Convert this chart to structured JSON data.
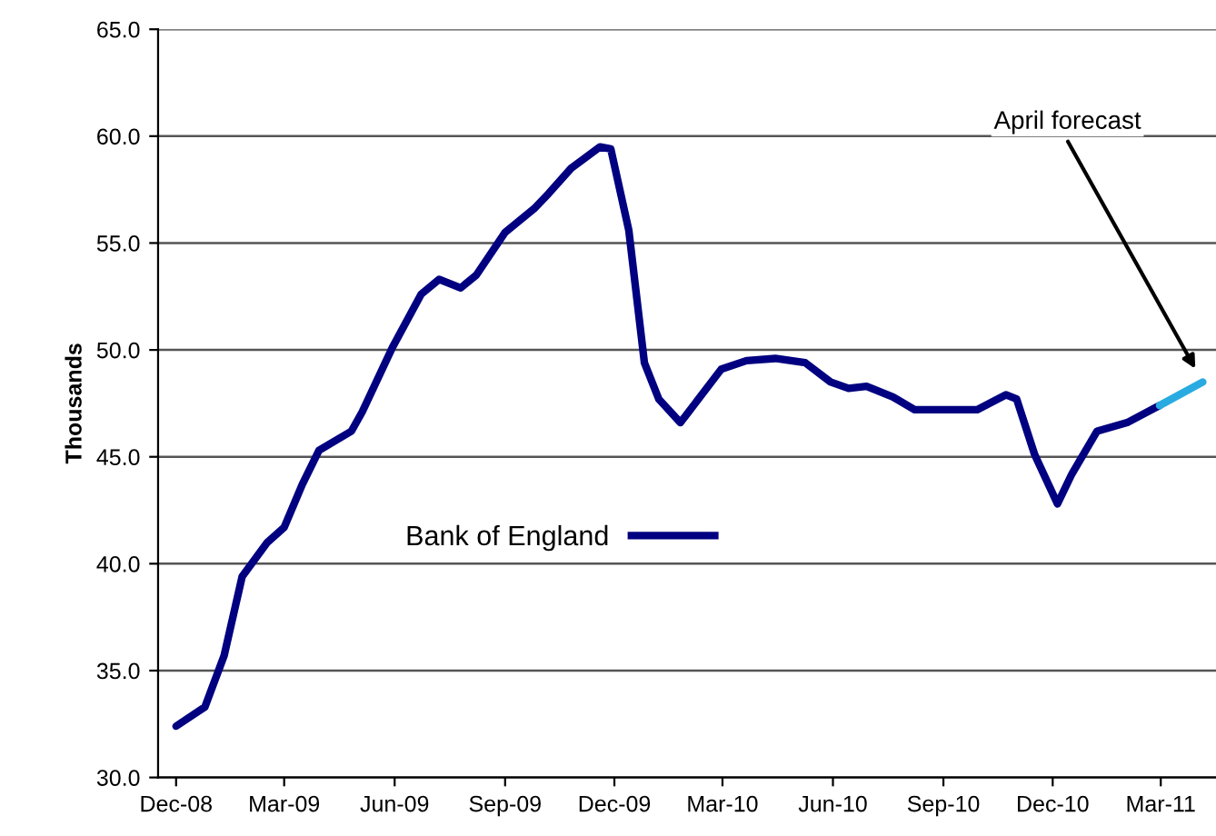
{
  "chart_data": {
    "type": "line",
    "ylabel": "Thousands",
    "series": [
      {
        "name": "Bank of England",
        "color": "#000080",
        "x": [
          "2008-12-15",
          "2009-01-08",
          "2009-01-24",
          "2009-02-08",
          "2009-03-01",
          "2009-03-15",
          "2009-03-30",
          "2009-04-13",
          "2009-05-10",
          "2009-05-19",
          "2009-06-13",
          "2009-07-07",
          "2009-07-22",
          "2009-08-09",
          "2009-08-22",
          "2009-09-15",
          "2009-10-09",
          "2009-10-21",
          "2009-11-09",
          "2009-12-03",
          "2009-12-12",
          "2009-12-27",
          "2010-01-09",
          "2010-01-21",
          "2010-02-08",
          "2010-03-14",
          "2010-04-04",
          "2010-04-28",
          "2010-05-23",
          "2010-06-13",
          "2010-06-28",
          "2010-07-13",
          "2010-08-04",
          "2010-08-22",
          "2010-10-13",
          "2010-11-06",
          "2010-11-15",
          "2010-11-30",
          "2010-12-19",
          "2010-12-31",
          "2011-01-21",
          "2011-02-15",
          "2011-03-14"
        ],
        "values": [
          32.4,
          33.3,
          35.7,
          39.4,
          41.0,
          41.7,
          43.7,
          45.3,
          46.2,
          47.1,
          50.1,
          52.6,
          53.3,
          52.9,
          53.5,
          55.5,
          56.6,
          57.3,
          58.5,
          59.5,
          59.4,
          55.6,
          49.4,
          47.7,
          46.6,
          49.1,
          49.5,
          49.6,
          49.4,
          48.5,
          48.2,
          48.3,
          47.8,
          47.2,
          47.2,
          47.9,
          47.7,
          45.1,
          42.8,
          44.2,
          46.2,
          46.6,
          47.4
        ]
      },
      {
        "color": "#29abe2",
        "x": [
          "2011-03-14",
          "2011-04-19"
        ],
        "values": [
          47.4,
          48.5
        ]
      }
    ],
    "annotations": [
      "April forecast"
    ],
    "xlim": [
      "2008-11-30",
      "2011-04-30"
    ],
    "xticks": [
      {
        "value": "2008-12-15",
        "label": "Dec-08"
      },
      {
        "value": "2009-03-15",
        "label": "Mar-09"
      },
      {
        "value": "2009-06-15",
        "label": "Jun-09"
      },
      {
        "value": "2009-09-15",
        "label": "Sep-09"
      },
      {
        "value": "2009-12-15",
        "label": "Dec-09"
      },
      {
        "value": "2010-03-15",
        "label": "Mar-10"
      },
      {
        "value": "2010-06-15",
        "label": "Jun-10"
      },
      {
        "value": "2010-09-15",
        "label": "Sep-10"
      },
      {
        "value": "2010-12-15",
        "label": "Dec-10"
      },
      {
        "value": "2011-03-15",
        "label": "Mar-11"
      }
    ],
    "ylim": [
      30,
      65
    ],
    "yticks": [
      {
        "value": 30,
        "label": "30.0"
      },
      {
        "value": 35,
        "label": "35.0"
      },
      {
        "value": 40,
        "label": "40.0"
      },
      {
        "value": 45,
        "label": "45.0"
      },
      {
        "value": 50,
        "label": "50.0"
      },
      {
        "value": 55,
        "label": "55.0"
      },
      {
        "value": 60,
        "label": "60.0"
      },
      {
        "value": 65,
        "label": "65.0"
      }
    ],
    "grid": "y",
    "legend": "center",
    "line_style": "solid"
  }
}
